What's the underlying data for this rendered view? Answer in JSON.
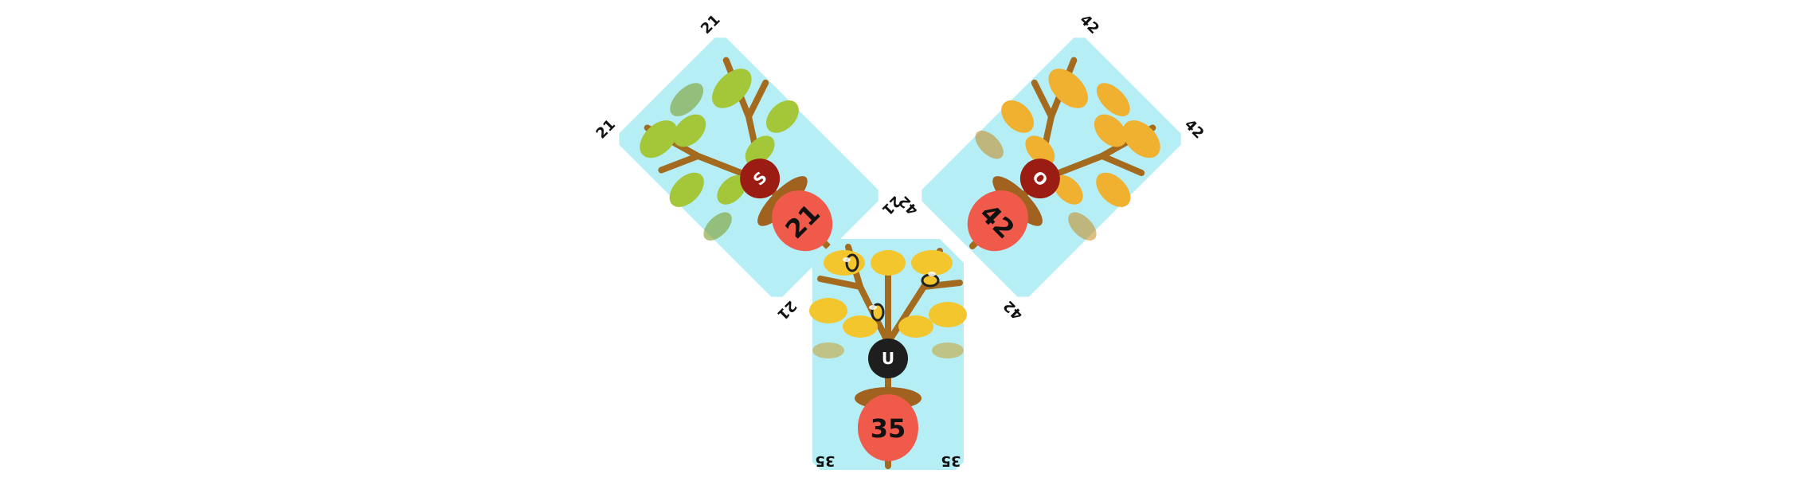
{
  "tiles": [
    {
      "id": "21",
      "value": "21",
      "corner_values": [
        "21",
        "21",
        "21",
        "21"
      ],
      "badge_letter": "S",
      "badge_color": "#9b1c12",
      "leaf_color": "#a4c639",
      "leaf_dark": "#7e9e2a",
      "acorn_color": "#f05a4b"
    },
    {
      "id": "42",
      "value": "42",
      "corner_values": [
        "42",
        "42",
        "42",
        "42"
      ],
      "badge_letter": "O",
      "badge_color": "#9b1c12",
      "leaf_color": "#f0b030",
      "leaf_dark": "#c48818",
      "acorn_color": "#f05a4b"
    },
    {
      "id": "35",
      "value": "35",
      "corner_values": [
        "35",
        "35"
      ],
      "badge_letter": "U",
      "badge_color": "#1e1e1e",
      "leaf_color": "#f3c62e",
      "leaf_dark": "#c99a18",
      "acorn_color": "#f05a4b",
      "icons": [
        "bee-icon",
        "bee-icon",
        "bee-icon"
      ]
    }
  ],
  "colors": {
    "sky": "#b5eef5",
    "branch": "#a46a1e",
    "acorn_cap": "#a0621e",
    "background": "#ffffff"
  }
}
